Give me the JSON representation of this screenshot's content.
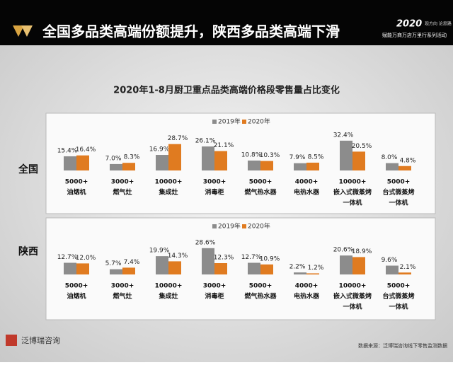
{
  "header": {
    "title": "全国多品类高端份额提升，陕西多品类高端下滑",
    "event_year": "2020",
    "event_slogan": "现方向 论思路 教方法",
    "event_name": "赋能万商万店万里行系列活动"
  },
  "main_title": "2020年1-8月厨卫重点品类高端价格段零售量占比变化",
  "chart_data": [
    {
      "type": "bar",
      "row_label": "全国",
      "categories": [
        [
          "5000+",
          "油烟机"
        ],
        [
          "3000+",
          "燃气灶"
        ],
        [
          "10000+",
          "集成灶"
        ],
        [
          "3000+",
          "消毒柜"
        ],
        [
          "5000+",
          "燃气热水器"
        ],
        [
          "4000+",
          "电热水器"
        ],
        [
          "10000+",
          "嵌入式微蒸烤",
          "一体机"
        ],
        [
          "5000+",
          "台式微蒸烤",
          "一体机"
        ]
      ],
      "series": [
        {
          "name": "2019年",
          "color": "#8c8c8c",
          "values": [
            15.4,
            7.0,
            16.9,
            26.1,
            10.8,
            7.9,
            32.4,
            8.0
          ],
          "value_labels": [
            "15.4%",
            "7.0%",
            "16.9%",
            "26.1%",
            "10.8%",
            "7.9%",
            "32.4%",
            "8.0%"
          ]
        },
        {
          "name": "2020年",
          "color": "#e07b20",
          "values": [
            16.4,
            8.3,
            28.7,
            21.1,
            10.3,
            8.5,
            20.5,
            4.8
          ],
          "value_labels": [
            "16.4%",
            "8.3%",
            "28.7%",
            "21.1%",
            "10.3%",
            "8.5%",
            "20.5%",
            "4.8%"
          ]
        }
      ]
    },
    {
      "type": "bar",
      "row_label": "陕西",
      "categories": [
        [
          "5000+",
          "油烟机"
        ],
        [
          "3000+",
          "燃气灶"
        ],
        [
          "10000+",
          "集成灶"
        ],
        [
          "3000+",
          "消毒柜"
        ],
        [
          "5000+",
          "燃气热水器"
        ],
        [
          "4000+",
          "电热水器"
        ],
        [
          "10000+",
          "嵌入式微蒸烤",
          "一体机"
        ],
        [
          "5000+",
          "台式微蒸烤",
          "一体机"
        ]
      ],
      "series": [
        {
          "name": "2019年",
          "color": "#8c8c8c",
          "values": [
            12.7,
            5.7,
            19.9,
            28.6,
            12.7,
            2.2,
            20.6,
            9.6
          ],
          "value_labels": [
            "12.7%",
            "5.7%",
            "19.9%",
            "28.6%",
            "12.7%",
            "2.2%",
            "20.6%",
            "9.6%"
          ]
        },
        {
          "name": "2020年",
          "color": "#e07b20",
          "values": [
            12.0,
            7.4,
            14.3,
            12.3,
            10.9,
            1.2,
            18.9,
            2.1
          ],
          "value_labels": [
            "12.0%",
            "7.4%",
            "14.3%",
            "12.3%",
            "10.9%",
            "1.2%",
            "18.9%",
            "2.1%"
          ]
        }
      ]
    }
  ],
  "footer": {
    "logo": "泛博瑞咨询",
    "source": "数据来源：泛博瑞咨询线下零售监测数据"
  }
}
